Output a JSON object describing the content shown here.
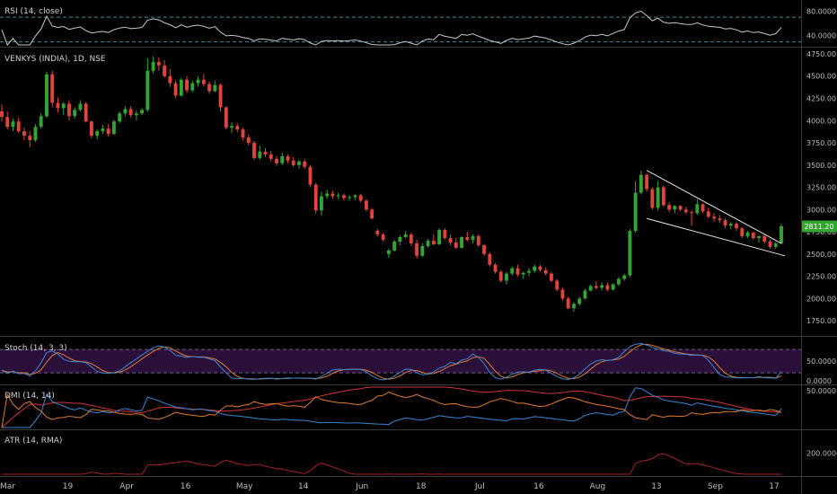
{
  "chart_data": {
    "type": "candlestick",
    "symbol_title": "VENKYS (INDIA), 1D, NSE",
    "last_price_label": "2811.20",
    "colors": {
      "up": "#33a532",
      "down": "#e0443a",
      "rsi": "#c9c9c9",
      "stoch_k": "#3a86d6",
      "stoch_d": "#e07a2f",
      "dmi_plus": "#3a86d6",
      "dmi_minus": "#e07a2f",
      "adx": "#d0343a",
      "atr": "#a3231f",
      "band_fill": "#2a0f3a"
    },
    "price_axis": {
      "ylim": [
        1600,
        4800
      ],
      "ticks": [
        "4750.00",
        "4500.00",
        "4250.00",
        "4000.00",
        "3750.00",
        "3500.00",
        "3250.00",
        "3000.00",
        "2750.00",
        "2500.00",
        "2250.00",
        "2000.00",
        "1750.00"
      ]
    },
    "x_axis": {
      "ticks": [
        "Mar",
        "19",
        "Apr",
        "16",
        "May",
        "14",
        "Jun",
        "18",
        "Jul",
        "16",
        "Aug",
        "13",
        "Sep",
        "17"
      ]
    },
    "candles": [
      [
        4105,
        4180,
        3990,
        4040
      ],
      [
        4040,
        4100,
        3900,
        3930
      ],
      [
        3930,
        4020,
        3880,
        3990
      ],
      [
        3990,
        4030,
        3860,
        3880
      ],
      [
        3880,
        3920,
        3780,
        3830
      ],
      [
        3830,
        3880,
        3700,
        3780
      ],
      [
        3780,
        3960,
        3760,
        3930
      ],
      [
        3930,
        4080,
        3910,
        4050
      ],
      [
        4050,
        4550,
        4030,
        4520
      ],
      [
        4520,
        4560,
        4150,
        4200
      ],
      [
        4200,
        4260,
        4090,
        4140
      ],
      [
        4140,
        4210,
        4060,
        4190
      ],
      [
        4190,
        4230,
        4000,
        4050
      ],
      [
        4050,
        4150,
        4020,
        4120
      ],
      [
        4120,
        4230,
        4100,
        4190
      ],
      [
        4190,
        4210,
        3980,
        3990
      ],
      [
        3990,
        4000,
        3800,
        3830
      ],
      [
        3830,
        3900,
        3790,
        3880
      ],
      [
        3880,
        3950,
        3850,
        3910
      ],
      [
        3910,
        3960,
        3820,
        3850
      ],
      [
        3850,
        4010,
        3840,
        3990
      ],
      [
        3990,
        4100,
        3970,
        4080
      ],
      [
        4080,
        4160,
        4050,
        4130
      ],
      [
        4130,
        4160,
        4030,
        4060
      ],
      [
        4060,
        4110,
        4000,
        4080
      ],
      [
        4080,
        4140,
        4060,
        4120
      ],
      [
        4120,
        4700,
        4100,
        4560
      ],
      [
        4560,
        4720,
        4530,
        4660
      ],
      [
        4660,
        4710,
        4560,
        4620
      ],
      [
        4620,
        4680,
        4480,
        4500
      ],
      [
        4500,
        4580,
        4380,
        4420
      ],
      [
        4420,
        4450,
        4250,
        4280
      ],
      [
        4280,
        4480,
        4270,
        4460
      ],
      [
        4460,
        4500,
        4310,
        4340
      ],
      [
        4340,
        4450,
        4320,
        4420
      ],
      [
        4420,
        4500,
        4380,
        4460
      ],
      [
        4460,
        4520,
        4390,
        4410
      ],
      [
        4410,
        4440,
        4300,
        4330
      ],
      [
        4330,
        4450,
        4320,
        4400
      ],
      [
        4400,
        4420,
        4100,
        4150
      ],
      [
        4150,
        4160,
        3900,
        3920
      ],
      [
        3920,
        3980,
        3860,
        3940
      ],
      [
        3940,
        3970,
        3870,
        3900
      ],
      [
        3900,
        3920,
        3780,
        3810
      ],
      [
        3810,
        3840,
        3720,
        3750
      ],
      [
        3750,
        3770,
        3560,
        3580
      ],
      [
        3580,
        3720,
        3560,
        3650
      ],
      [
        3650,
        3690,
        3590,
        3620
      ],
      [
        3620,
        3660,
        3540,
        3570
      ],
      [
        3570,
        3600,
        3490,
        3520
      ],
      [
        3520,
        3640,
        3500,
        3600
      ],
      [
        3600,
        3620,
        3520,
        3550
      ],
      [
        3550,
        3590,
        3480,
        3500
      ],
      [
        3500,
        3560,
        3460,
        3540
      ],
      [
        3540,
        3570,
        3460,
        3480
      ],
      [
        3480,
        3500,
        3250,
        3280
      ],
      [
        3280,
        3300,
        2950,
        2990
      ],
      [
        2990,
        3200,
        2930,
        3150
      ],
      [
        3150,
        3220,
        3120,
        3180
      ],
      [
        3180,
        3210,
        3120,
        3150
      ],
      [
        3150,
        3190,
        3120,
        3160
      ],
      [
        3160,
        3180,
        3100,
        3130
      ],
      [
        3130,
        3160,
        3100,
        3140
      ],
      [
        3140,
        3170,
        3110,
        3160
      ],
      [
        3160,
        3180,
        3080,
        3100
      ],
      [
        3100,
        3120,
        2980,
        3000
      ],
      [
        3000,
        3020,
        2890,
        2900
      ],
      [
        2760,
        2780,
        2700,
        2720
      ],
      [
        2720,
        2740,
        2640,
        2660
      ],
      [
        2500,
        2560,
        2460,
        2540
      ],
      [
        2540,
        2660,
        2530,
        2640
      ],
      [
        2640,
        2710,
        2600,
        2690
      ],
      [
        2690,
        2760,
        2680,
        2720
      ],
      [
        2720,
        2740,
        2590,
        2620
      ],
      [
        2620,
        2660,
        2450,
        2480
      ],
      [
        2480,
        2620,
        2470,
        2590
      ],
      [
        2590,
        2670,
        2570,
        2650
      ],
      [
        2650,
        2720,
        2600,
        2610
      ],
      [
        2610,
        2790,
        2600,
        2770
      ],
      [
        2770,
        2790,
        2660,
        2680
      ],
      [
        2680,
        2720,
        2600,
        2630
      ],
      [
        2630,
        2680,
        2560,
        2570
      ],
      [
        2570,
        2700,
        2560,
        2690
      ],
      [
        2690,
        2750,
        2640,
        2660
      ],
      [
        2660,
        2720,
        2620,
        2700
      ],
      [
        2700,
        2720,
        2580,
        2600
      ],
      [
        2600,
        2610,
        2480,
        2500
      ],
      [
        2500,
        2520,
        2360,
        2380
      ],
      [
        2380,
        2400,
        2280,
        2300
      ],
      [
        2300,
        2320,
        2180,
        2200
      ],
      [
        2200,
        2300,
        2160,
        2280
      ],
      [
        2280,
        2360,
        2260,
        2340
      ],
      [
        2340,
        2380,
        2250,
        2270
      ],
      [
        2270,
        2300,
        2220,
        2290
      ],
      [
        2290,
        2340,
        2250,
        2310
      ],
      [
        2310,
        2380,
        2290,
        2360
      ],
      [
        2360,
        2380,
        2300,
        2320
      ],
      [
        2320,
        2350,
        2260,
        2280
      ],
      [
        2280,
        2300,
        2180,
        2200
      ],
      [
        2200,
        2220,
        2080,
        2100
      ],
      [
        2100,
        2120,
        1980,
        2000
      ],
      [
        2000,
        2020,
        1880,
        1890
      ],
      [
        1890,
        1960,
        1850,
        1940
      ],
      [
        1940,
        2020,
        1920,
        2000
      ],
      [
        2000,
        2110,
        1990,
        2090
      ],
      [
        2090,
        2160,
        2080,
        2140
      ],
      [
        2140,
        2200,
        2100,
        2120
      ],
      [
        2120,
        2180,
        2090,
        2150
      ],
      [
        2150,
        2180,
        2080,
        2100
      ],
      [
        2100,
        2170,
        2090,
        2160
      ],
      [
        2160,
        2240,
        2140,
        2220
      ],
      [
        2220,
        2280,
        2200,
        2260
      ],
      [
        2260,
        2780,
        2240,
        2760
      ],
      [
        2760,
        3320,
        2740,
        3190
      ],
      [
        3190,
        3440,
        3170,
        3390
      ],
      [
        3390,
        3410,
        3200,
        3230
      ],
      [
        3230,
        3250,
        3000,
        3020
      ],
      [
        3020,
        3320,
        2990,
        3250
      ],
      [
        3250,
        3270,
        3030,
        3050
      ],
      [
        3050,
        3080,
        2970,
        3000
      ],
      [
        3000,
        3050,
        2960,
        3040
      ],
      [
        3040,
        3050,
        2980,
        3000
      ],
      [
        3000,
        3030,
        2950,
        2970
      ],
      [
        2970,
        2990,
        2820,
        2960
      ],
      [
        2960,
        3120,
        2940,
        3060
      ],
      [
        3060,
        3070,
        2960,
        2980
      ],
      [
        2980,
        3020,
        2900,
        2920
      ],
      [
        2920,
        2960,
        2860,
        2900
      ],
      [
        2900,
        2940,
        2850,
        2880
      ],
      [
        2880,
        2900,
        2790,
        2820
      ],
      [
        2820,
        2860,
        2780,
        2840
      ],
      [
        2840,
        2860,
        2760,
        2790
      ],
      [
        2790,
        2800,
        2680,
        2700
      ],
      [
        2700,
        2760,
        2680,
        2740
      ],
      [
        2740,
        2750,
        2660,
        2680
      ],
      [
        2680,
        2710,
        2630,
        2700
      ],
      [
        2700,
        2720,
        2620,
        2640
      ],
      [
        2640,
        2660,
        2560,
        2580
      ],
      [
        2580,
        2640,
        2560,
        2620
      ],
      [
        2620,
        2840,
        2610,
        2811
      ]
    ],
    "rsi": {
      "label": "RSI (14, close)",
      "ylim": [
        25,
        95
      ],
      "levels": [
        70,
        30
      ],
      "tick_labels": [
        "80.0000",
        "40.0000"
      ],
      "tick_values": [
        80,
        40
      ]
    },
    "stoch": {
      "label": "Stoch (14, 3, 3)",
      "ylim": [
        -5,
        108
      ],
      "band": [
        20,
        80
      ],
      "tick_labels": [
        "50.0000",
        "0.0000"
      ],
      "tick_values": [
        50,
        0
      ]
    },
    "dmi": {
      "label": "DMI (14, 14)",
      "ylim": [
        0,
        55
      ],
      "tick_labels": [
        "50.0000"
      ],
      "tick_values": [
        50
      ]
    },
    "atr": {
      "label": "ATR (14, RMA)",
      "ylim": [
        140,
        260
      ],
      "tick_labels": [
        "200.0000"
      ],
      "tick_values": [
        200
      ]
    }
  }
}
